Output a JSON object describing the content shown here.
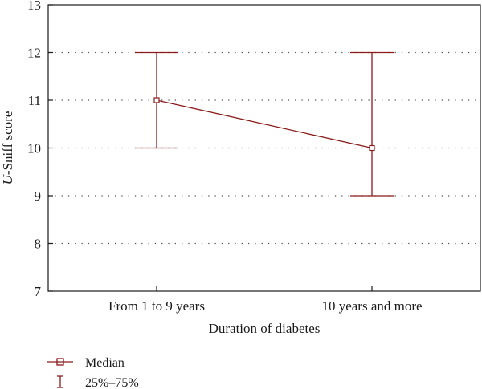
{
  "chart_data": {
    "type": "line",
    "categories": [
      "From 1 to 9 years",
      "10 years and more"
    ],
    "series": [
      {
        "name": "Median",
        "values": [
          11,
          10
        ]
      }
    ],
    "ranges": [
      {
        "name": "25%–75%",
        "low": [
          10,
          9
        ],
        "high": [
          12,
          12
        ]
      }
    ],
    "xlabel": "Duration of diabetes",
    "ylabel": "U-Sniff score",
    "ylabel_italic_prefix": "U",
    "ylabel_rest": "-Sniff score",
    "ylim": [
      7,
      13
    ],
    "yticks": [
      7,
      8,
      9,
      10,
      11,
      12,
      13
    ],
    "grid": "horizontal dotted",
    "legend_position": "bottom-left",
    "legend": [
      {
        "label": "Median",
        "marker": "square-line"
      },
      {
        "label": "25%–75%",
        "marker": "whisker"
      }
    ],
    "color": "#8b1a1a"
  }
}
